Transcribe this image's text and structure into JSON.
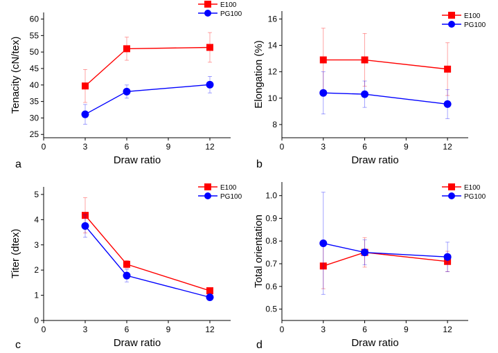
{
  "colors": {
    "e100": "#ff0000",
    "pg100": "#0000ff",
    "axis": "#000000"
  },
  "chart_data": [
    {
      "type": "line",
      "panel_label": "a",
      "xlabel": "Draw ratio",
      "ylabel": "Tenacity (cN/tex)",
      "xlim": [
        0,
        13.5
      ],
      "ylim": [
        24,
        62
      ],
      "xticks": [
        0,
        3,
        6,
        9,
        12
      ],
      "yticks": [
        25,
        30,
        35,
        40,
        45,
        50,
        55,
        60
      ],
      "ytick_labels": [
        "25",
        "30",
        "35",
        "40",
        "45",
        "50",
        "55",
        "60"
      ],
      "legend": "top-right",
      "series": [
        {
          "name": "E100",
          "marker": "square",
          "x": [
            3,
            6,
            12
          ],
          "y": [
            39.7,
            51.0,
            51.4
          ],
          "err": [
            5.0,
            3.5,
            4.5
          ]
        },
        {
          "name": "PG100",
          "marker": "circle",
          "x": [
            3,
            6,
            12
          ],
          "y": [
            31.1,
            38.0,
            40.1
          ],
          "err": [
            3.0,
            2.0,
            2.5
          ]
        }
      ]
    },
    {
      "type": "line",
      "panel_label": "b",
      "xlabel": "Draw ratio",
      "ylabel": "Elongation (%)",
      "xlim": [
        0,
        13.5
      ],
      "ylim": [
        7,
        16.6
      ],
      "xticks": [
        0,
        3,
        6,
        9,
        12
      ],
      "yticks": [
        8,
        10,
        12,
        14,
        16
      ],
      "ytick_labels": [
        "8",
        "10",
        "12",
        "14",
        "16"
      ],
      "legend": "top-right",
      "series": [
        {
          "name": "E100",
          "marker": "square",
          "x": [
            3,
            6,
            12
          ],
          "y": [
            12.9,
            12.9,
            12.2
          ],
          "err": [
            2.4,
            2.0,
            2.0
          ]
        },
        {
          "name": "PG100",
          "marker": "circle",
          "x": [
            3,
            6,
            12
          ],
          "y": [
            10.4,
            10.3,
            9.55
          ],
          "err": [
            1.6,
            1.0,
            1.1
          ]
        }
      ]
    },
    {
      "type": "line",
      "panel_label": "c",
      "xlabel": "Draw ratio",
      "ylabel": "Titer (dtex)",
      "xlim": [
        0,
        13.5
      ],
      "ylim": [
        0,
        5.3
      ],
      "xticks": [
        0,
        3,
        6,
        9,
        12
      ],
      "yticks": [
        0,
        1,
        2,
        3,
        4,
        5
      ],
      "ytick_labels": [
        "0",
        "1",
        "2",
        "3",
        "4",
        "5"
      ],
      "legend": "top-right",
      "series": [
        {
          "name": "E100",
          "marker": "square",
          "x": [
            3,
            6,
            12
          ],
          "y": [
            4.17,
            2.23,
            1.18
          ],
          "err": [
            0.7,
            0.15,
            0.05
          ]
        },
        {
          "name": "PG100",
          "marker": "circle",
          "x": [
            3,
            6,
            12
          ],
          "y": [
            3.75,
            1.78,
            0.92
          ],
          "err": [
            0.45,
            0.25,
            0.05
          ]
        }
      ]
    },
    {
      "type": "line",
      "panel_label": "d",
      "xlabel": "Draw ratio",
      "ylabel": "Total orientation",
      "xlim": [
        0,
        13.5
      ],
      "ylim": [
        0.45,
        1.06
      ],
      "xticks": [
        0,
        3,
        6,
        9,
        12
      ],
      "yticks": [
        0.5,
        0.6,
        0.7,
        0.8,
        0.9,
        1.0
      ],
      "ytick_labels": [
        "0.5",
        "0.6",
        "0.7",
        "0.8",
        "0.9",
        "1.0"
      ],
      "legend": "top-right",
      "series": [
        {
          "name": "E100",
          "marker": "square",
          "x": [
            3,
            6,
            12
          ],
          "y": [
            0.69,
            0.75,
            0.71
          ],
          "err": [
            0.1,
            0.065,
            0.045
          ]
        },
        {
          "name": "PG100",
          "marker": "circle",
          "x": [
            3,
            6,
            12
          ],
          "y": [
            0.79,
            0.75,
            0.73
          ],
          "err": [
            0.225,
            0.055,
            0.065
          ]
        }
      ]
    }
  ]
}
